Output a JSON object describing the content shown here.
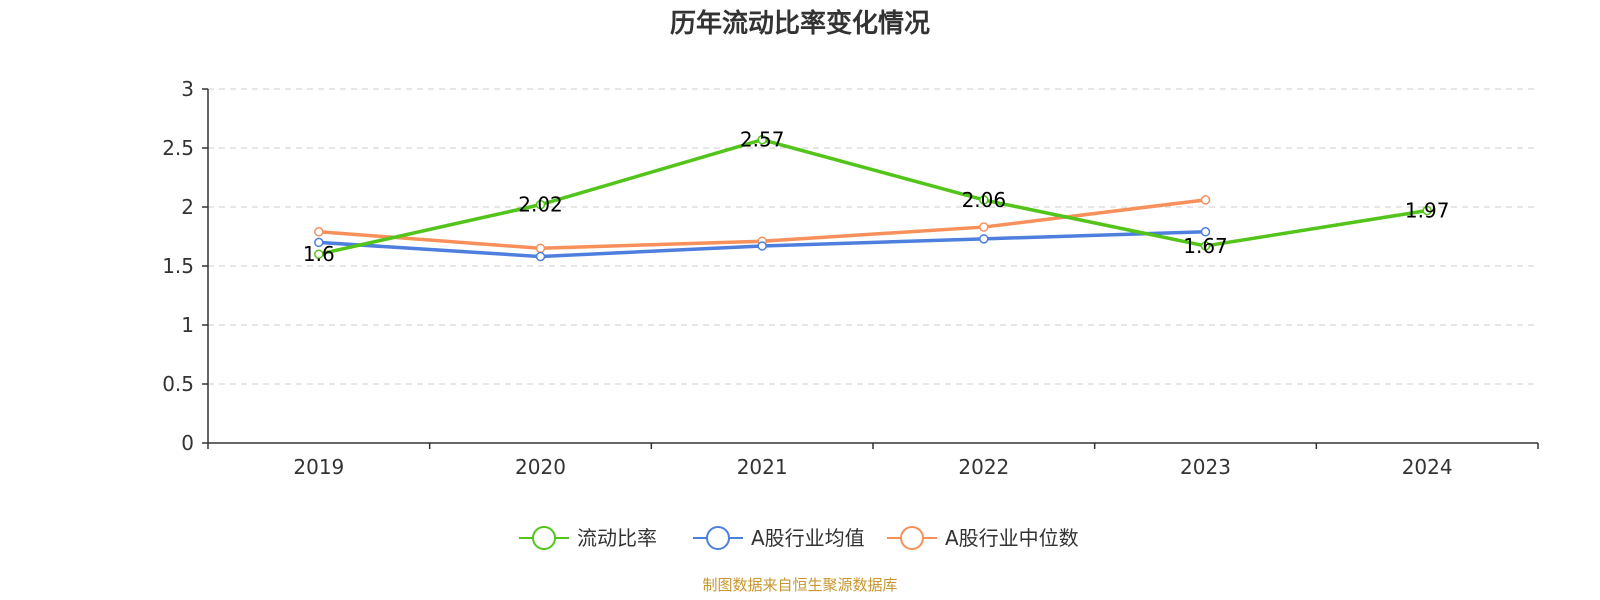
{
  "chart_data": {
    "type": "line",
    "title": "历年流动比率变化情况",
    "xlabel": "",
    "ylabel": "",
    "categories": [
      "2019",
      "2020",
      "2021",
      "2022",
      "2023",
      "2024"
    ],
    "ylim": [
      0,
      3
    ],
    "yticks": [
      "0",
      "0.5",
      "1",
      "1.5",
      "2",
      "2.5",
      "3"
    ],
    "grid": "horizontal dashed",
    "legend_position": "bottom-center",
    "series": [
      {
        "name": "流动比率",
        "color": "#52c41a",
        "values": [
          1.6,
          2.02,
          2.57,
          2.06,
          1.67,
          1.97
        ],
        "labels": [
          "1.6",
          "2.02",
          "2.57",
          "2.06",
          "1.67",
          "1.97"
        ]
      },
      {
        "name": "A股行业均值",
        "color": "#4e7fdf",
        "values": [
          1.7,
          1.58,
          1.67,
          1.73,
          1.79,
          null
        ]
      },
      {
        "name": "A股行业中位数",
        "color": "#f7905a",
        "values": [
          1.79,
          1.65,
          1.71,
          1.83,
          2.06,
          null
        ]
      }
    ]
  },
  "source_text": "制图数据来自恒生聚源数据库"
}
